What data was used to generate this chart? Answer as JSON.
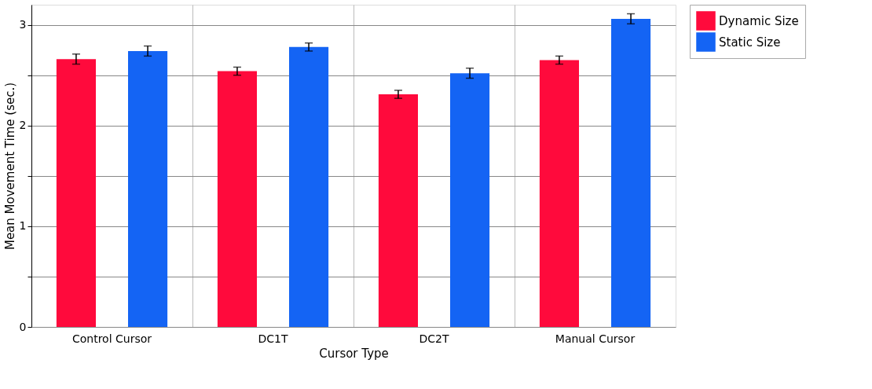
{
  "chart_data": {
    "type": "bar",
    "xlabel": "Cursor Type",
    "ylabel": "Mean Movement Time (sec.)",
    "categories": [
      "Control Cursor",
      "DC1T",
      "DC2T",
      "Manual Cursor"
    ],
    "series": [
      {
        "name": "Dynamic Size",
        "color": "#ff0a3c",
        "values": [
          2.66,
          2.54,
          2.31,
          2.65
        ],
        "errors": [
          0.05,
          0.04,
          0.04,
          0.04
        ]
      },
      {
        "name": "Static Size",
        "color": "#1464f4",
        "values": [
          2.74,
          2.78,
          2.52,
          3.06
        ],
        "errors": [
          0.05,
          0.04,
          0.05,
          0.05
        ]
      }
    ],
    "ylim": [
      0,
      3.2
    ],
    "yticks": [
      {
        "value": 0,
        "label": "0"
      },
      {
        "value": 0.5,
        "label": null
      },
      {
        "value": 1,
        "label": "1"
      },
      {
        "value": 1.5,
        "label": null
      },
      {
        "value": 2,
        "label": "2"
      },
      {
        "value": 2.5,
        "label": null
      },
      {
        "value": 3,
        "label": "3"
      }
    ],
    "grid": true,
    "legend": "right"
  }
}
